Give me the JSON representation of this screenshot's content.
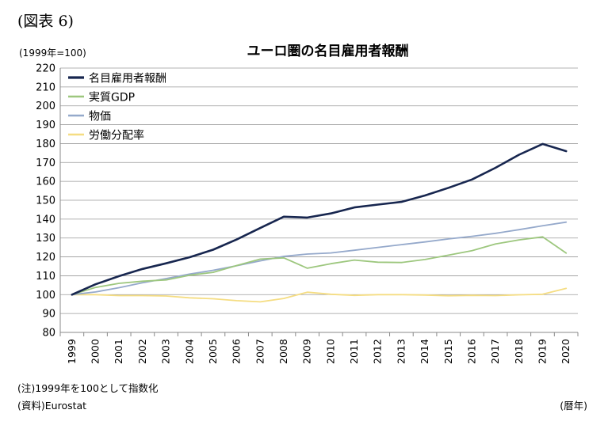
{
  "figure_label": "(図表 6)",
  "unit_label": "(1999年=100)",
  "note": "(注)1999年を100として指数化",
  "source": "(資料)Eurostat",
  "x_unit": "(暦年)",
  "chart_data": {
    "type": "line",
    "title": "ユーロ圏の名目雇用者報酬",
    "xlabel": "",
    "ylabel": "",
    "ylim": [
      80,
      220
    ],
    "yticks": [
      80,
      90,
      100,
      110,
      120,
      130,
      140,
      150,
      160,
      170,
      180,
      190,
      200,
      210,
      220
    ],
    "grid": true,
    "legend_position": "top-left",
    "x": [
      "1999",
      "2000",
      "2001",
      "2002",
      "2003",
      "2004",
      "2005",
      "2006",
      "2007",
      "2008",
      "2009",
      "2010",
      "2011",
      "2012",
      "2013",
      "2014",
      "2015",
      "2016",
      "2017",
      "2018",
      "2019",
      "2020"
    ],
    "series": [
      {
        "name": "名目雇用者報酬",
        "color": "#17264f",
        "width": 2.6,
        "values": [
          100,
          105.5,
          109.8,
          113.6,
          116.6,
          119.8,
          123.8,
          129.2,
          135.3,
          141.3,
          140.8,
          143.0,
          146.2,
          147.7,
          149.1,
          152.5,
          156.6,
          161.0,
          167.2,
          174.1,
          179.8,
          176.0
        ]
      },
      {
        "name": "実質GDP",
        "color": "#9dc77e",
        "width": 1.8,
        "values": [
          100,
          103.8,
          106.0,
          107.1,
          107.8,
          110.3,
          111.8,
          115.4,
          118.8,
          119.5,
          114.0,
          116.4,
          118.3,
          117.2,
          117.0,
          118.6,
          120.9,
          123.3,
          126.8,
          129.0,
          130.6,
          122.0
        ]
      },
      {
        "name": "物価",
        "color": "#95a9cb",
        "width": 1.8,
        "values": [
          100,
          101.4,
          103.7,
          106.3,
          108.5,
          110.9,
          112.9,
          115.3,
          117.9,
          120.3,
          121.5,
          122.1,
          123.5,
          125.0,
          126.5,
          127.9,
          129.5,
          130.9,
          132.5,
          134.4,
          136.5,
          138.4
        ]
      },
      {
        "name": "労働分配率",
        "color": "#f5dd82",
        "width": 1.8,
        "values": [
          100,
          100.0,
          99.5,
          99.5,
          99.3,
          98.3,
          97.8,
          96.8,
          96.2,
          98.0,
          101.3,
          100.2,
          99.6,
          100.0,
          100.0,
          99.8,
          99.4,
          99.6,
          99.5,
          99.9,
          100.2,
          103.3
        ]
      }
    ]
  }
}
